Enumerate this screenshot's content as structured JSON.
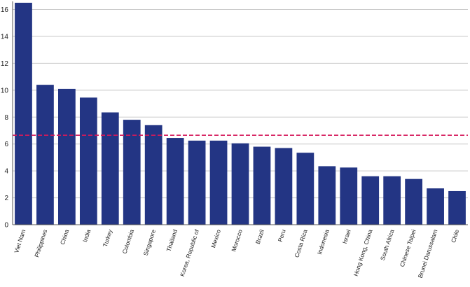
{
  "chart_data": {
    "type": "bar",
    "categories": [
      "Viet Nam",
      "Philippines",
      "China",
      "India",
      "Turkey",
      "Colombia",
      "Singapore",
      "Thailand",
      "Korea, Republic of",
      "Mexico",
      "Morocco",
      "Brazil",
      "Peru",
      "Costa Rica",
      "Indonesia",
      "Israel",
      "Hong Kong, China",
      "South Africa",
      "Chinese Taipei",
      "Brunei Darussalam",
      "Chile"
    ],
    "values": [
      16.5,
      10.4,
      10.1,
      9.45,
      8.35,
      7.8,
      7.4,
      6.45,
      6.25,
      6.25,
      6.05,
      5.8,
      5.7,
      5.35,
      4.35,
      4.25,
      3.6,
      3.6,
      3.4,
      2.7,
      2.5
    ],
    "reference_line": 6.65,
    "ylim": [
      0,
      16.6
    ],
    "yticks": [
      "0",
      "2",
      "4",
      "6",
      "8",
      "10",
      "12",
      "14",
      "16"
    ],
    "title": "",
    "xlabel": "",
    "ylabel": "",
    "grid": true,
    "legend": "none",
    "colors": {
      "bar": "#233584",
      "reference_line": "#d5195a",
      "grid": "#c8c8c8",
      "axis": "#555555"
    }
  }
}
